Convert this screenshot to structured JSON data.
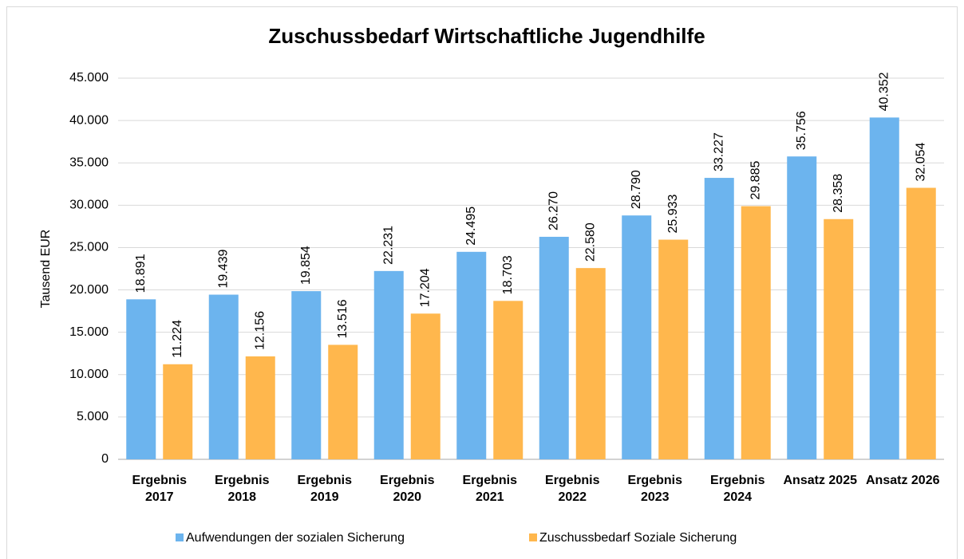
{
  "chart_data": {
    "type": "bar",
    "title": "Zuschussbedarf Wirtschaftliche Jugendhilfe",
    "y_label": "Tausend EUR",
    "categories": [
      "Ergebnis 2017",
      "Ergebnis 2018",
      "Ergebnis 2019",
      "Ergebnis 2020",
      "Ergebnis 2021",
      "Ergebnis 2022",
      "Ergebnis 2023",
      "Ergebnis 2024",
      "Ansatz 2025",
      "Ansatz 2026"
    ],
    "series": [
      {
        "name": "Aufwendungen der sozialen Sicherung",
        "color": "#6cb4ee",
        "values": [
          18891,
          19439,
          19854,
          22231,
          24495,
          26270,
          28790,
          33227,
          35756,
          40352
        ],
        "value_labels": [
          "18.891",
          "19.439",
          "19.854",
          "22.231",
          "24.495",
          "26.270",
          "28.790",
          "33.227",
          "35.756",
          "40.352"
        ]
      },
      {
        "name": "Zuschussbedarf Soziale Sicherung",
        "color": "#ffb74d",
        "values": [
          11224,
          12156,
          13516,
          17204,
          18703,
          22580,
          25933,
          29885,
          28358,
          32054
        ],
        "value_labels": [
          "11.224",
          "12.156",
          "13.516",
          "17.204",
          "18.703",
          "22.580",
          "25.933",
          "29.885",
          "28.358",
          "32.054"
        ]
      }
    ],
    "ylim": [
      0,
      45000
    ],
    "yticks": [
      0,
      {
        "value": 5000,
        "label": "5.000"
      },
      {
        "value": 10000,
        "label": "10.000"
      },
      {
        "value": 15000,
        "label": "15.000"
      },
      {
        "value": 20000,
        "label": "20.000"
      },
      {
        "value": 25000,
        "label": "25.000"
      },
      {
        "value": 30000,
        "label": "30.000"
      },
      {
        "value": 35000,
        "label": "35.000"
      },
      {
        "value": 40000,
        "label": "40.000"
      },
      {
        "value": 45000,
        "label": "45.000"
      }
    ],
    "grid": true,
    "legend": "bottom"
  }
}
